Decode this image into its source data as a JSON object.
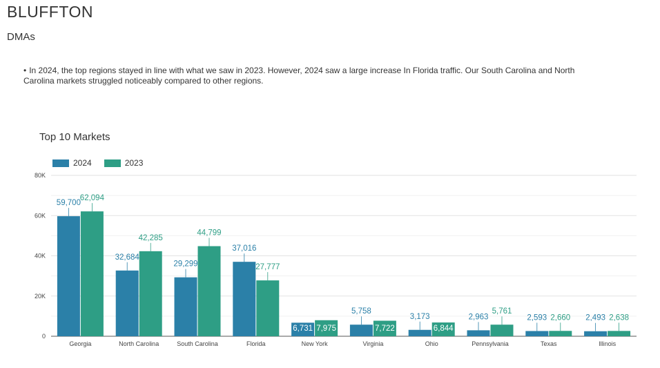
{
  "page": {
    "title": "BLUFFTON",
    "subtitle": "DMAs",
    "note": "In 2024, the top regions stayed in line with what we saw in 2023. However, 2024 saw a large increase In Florida traffic. Our South Carolina and North Carolina markets struggled noticeably compared to other regions."
  },
  "colors": {
    "series2024": "#2b80a8",
    "series2023": "#2e9e85"
  },
  "chart_data": {
    "type": "bar",
    "title": "Top 10 Markets",
    "categories": [
      "Georgia",
      "North Carolina",
      "South Carolina",
      "Florida",
      "New York",
      "Virginia",
      "Ohio",
      "Pennsylvania",
      "Texas",
      "Illinois"
    ],
    "series": [
      {
        "name": "2024",
        "values": [
          59700,
          32684,
          29299,
          37016,
          6731,
          5758,
          3173,
          2963,
          2593,
          2493
        ],
        "labels": [
          "59,700",
          "32,684",
          "29,299",
          "37,016",
          "6,731",
          "5,758",
          "3,173",
          "2,963",
          "2,593",
          "2,493"
        ]
      },
      {
        "name": "2023",
        "values": [
          62094,
          42285,
          44799,
          27777,
          7975,
          7722,
          6844,
          5761,
          2660,
          2638
        ],
        "labels": [
          "62,094",
          "42,285",
          "44,799",
          "27,777",
          "7,975",
          "7,722",
          "6,844",
          "5,761",
          "2,660",
          "2,638"
        ]
      }
    ],
    "ylim": [
      0,
      80000
    ],
    "yticks": [
      0,
      20000,
      40000,
      60000,
      80000
    ],
    "ytick_labels": [
      "0",
      "20K",
      "40K",
      "60K",
      "80K"
    ],
    "legend": "top-left",
    "xlabel": "",
    "ylabel": ""
  }
}
